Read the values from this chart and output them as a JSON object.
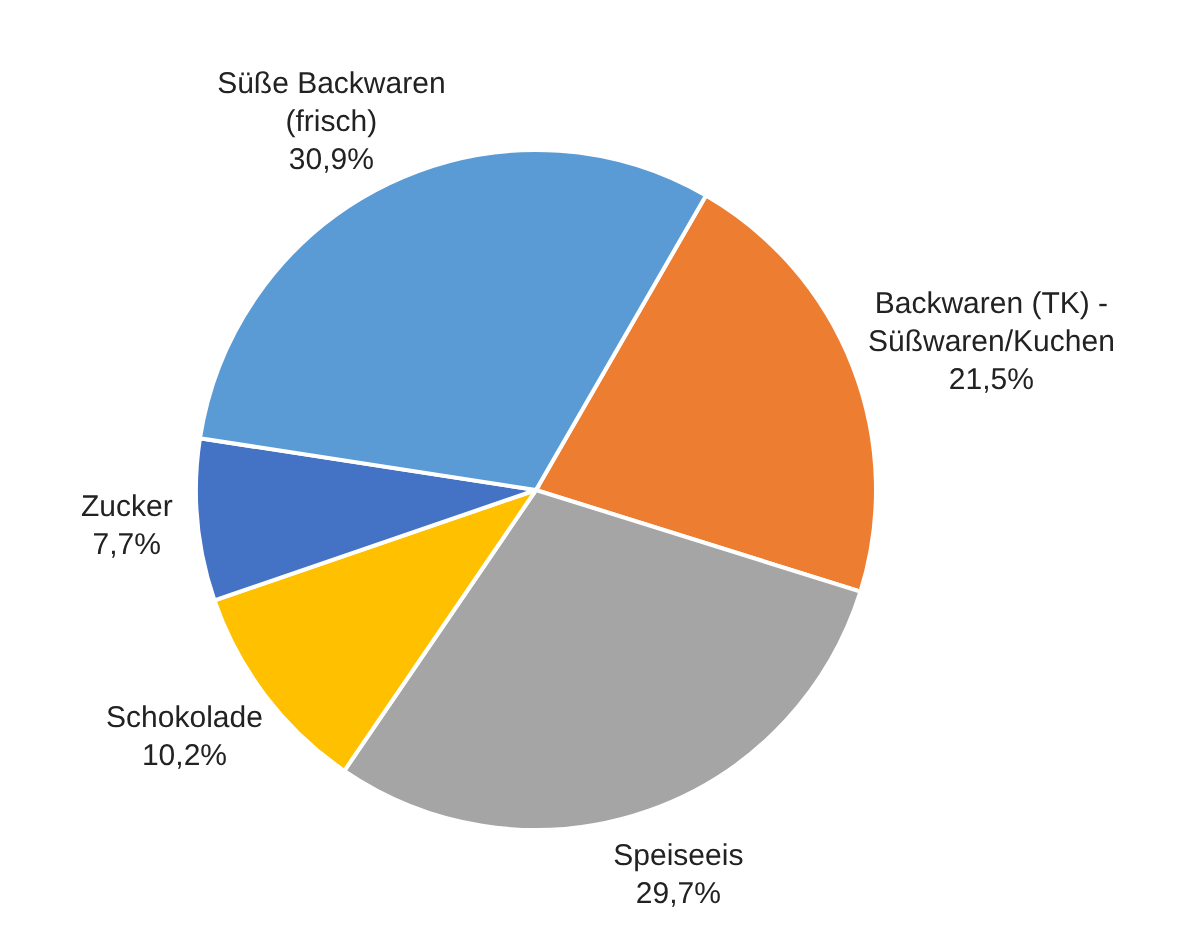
{
  "chart_data": {
    "type": "pie",
    "categories": [
      "Backwaren (TK) - Süßwaren/Kuchen",
      "Speiseeis",
      "Schokolade",
      "Zucker",
      "Süße Backwaren (frisch)"
    ],
    "values": [
      21.5,
      29.7,
      10.2,
      7.7,
      30.9
    ],
    "value_labels": [
      "21,5%",
      "29,7%",
      "10,2%",
      "7,7%",
      "30,9%"
    ],
    "colors": [
      "#ed7d31",
      "#a5a5a5",
      "#ffc000",
      "#4472c4",
      "#5b9bd5"
    ],
    "legend": false
  }
}
